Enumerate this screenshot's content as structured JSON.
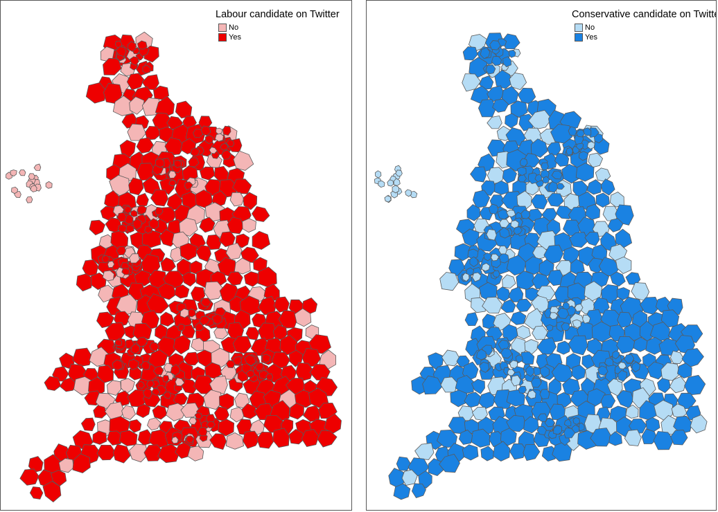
{
  "maps": [
    {
      "legend_title": "Labour candidate on Twitter",
      "legend": [
        {
          "label": "No",
          "color": "#f4b6b6"
        },
        {
          "label": "Yes",
          "color": "#ee0000"
        }
      ]
    },
    {
      "legend_title": "Conservative candidate on Twitter",
      "legend": [
        {
          "label": "No",
          "color": "#b5dcf5"
        },
        {
          "label": "Yes",
          "color": "#1a82e2"
        }
      ]
    }
  ],
  "style": {
    "border_color": "#5a5a5a"
  }
}
